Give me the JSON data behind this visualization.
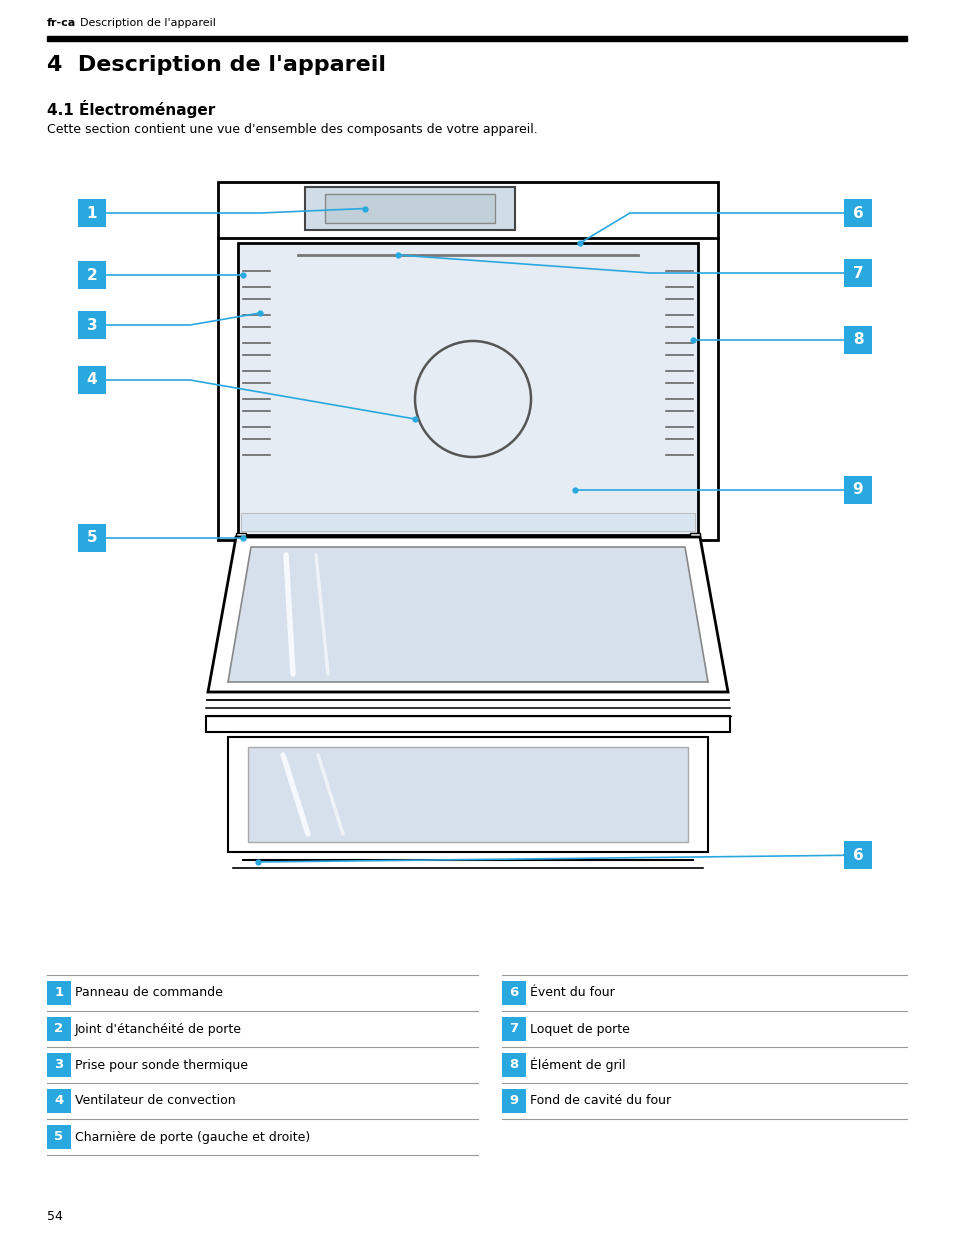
{
  "header_small": "fr-ca",
  "header_subtitle": "Description de l'appareil",
  "title_num": "4",
  "title": "Description de l'appareil",
  "subtitle": "4.1 Électroménager",
  "description": "Cette section contient une vue d'ensemble des composants de votre appareil.",
  "page_number": "54",
  "label_color": "#29a8e0",
  "line_color": "#29a8e0",
  "labels_left": [
    {
      "num": "1",
      "text": "Panneau de commande"
    },
    {
      "num": "2",
      "text": "Joint d'étanchéité de porte"
    },
    {
      "num": "3",
      "text": "Prise pour sonde thermique"
    },
    {
      "num": "4",
      "text": "Ventilateur de convection"
    },
    {
      "num": "5",
      "text": "Charnière de porte (gauche et droite)"
    }
  ],
  "labels_right": [
    {
      "num": "6",
      "text": "Évent du four"
    },
    {
      "num": "7",
      "text": "Loquet de porte"
    },
    {
      "num": "8",
      "text": "Élément de gril"
    },
    {
      "num": "9",
      "text": "Fond de cavité du four"
    }
  ]
}
